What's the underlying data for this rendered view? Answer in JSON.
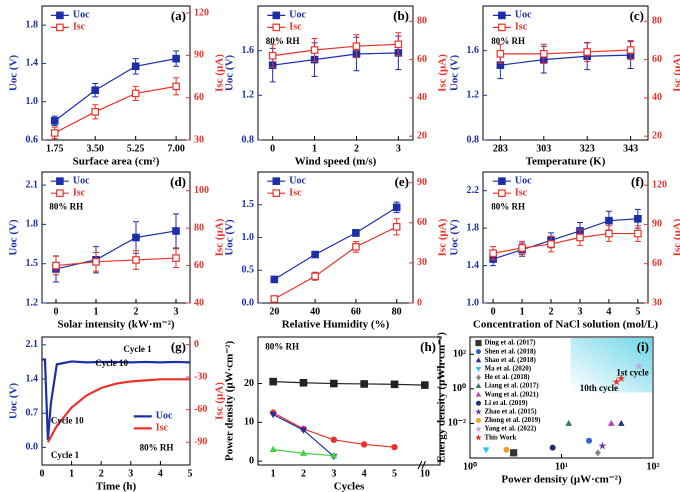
{
  "chart_data": [
    {
      "type": "line",
      "label": "(a)",
      "xlabel": "Surface area (cm²)",
      "ylabel": "Uoc (V)",
      "y2label": "Isc (μA)",
      "x": [
        1.75,
        3.5,
        5.25,
        7
      ],
      "xlim": [
        1.2,
        7.6
      ],
      "xticks": [
        1.75,
        {
          "value": 3.5,
          "label": "3.50"
        },
        5.25,
        {
          "value": 7,
          "label": "7.00"
        }
      ],
      "ylim": [
        0.6,
        2.0
      ],
      "yticks": [
        0.6,
        {
          "value": 1,
          "label": "1.0"
        },
        1.4,
        1.8
      ],
      "y2lim": [
        30,
        125
      ],
      "y2ticks": [
        30,
        60,
        90,
        120
      ],
      "series": [
        {
          "name": "Uoc",
          "color": "#1c2fa8",
          "marker": "square",
          "values": [
            0.8,
            1.12,
            1.37,
            1.45
          ],
          "errors": [
            0.05,
            0.07,
            0.08,
            0.08
          ]
        },
        {
          "name": "Isc",
          "color": "#e8332a",
          "marker": "open-square",
          "axis": "y2",
          "values": [
            35,
            50,
            63,
            68
          ],
          "errors": [
            4,
            5,
            5,
            6
          ]
        }
      ]
    },
    {
      "type": "line",
      "label": "(b)",
      "xlabel": "Wind speed (m/s)",
      "ylabel": "Uoc (V)",
      "y2label": "Isc (μA)",
      "annotations": [
        "80% RH"
      ],
      "x": [
        0,
        1,
        2,
        3
      ],
      "xlim": [
        -0.35,
        3.35
      ],
      "xticks": [
        0,
        1,
        2,
        3
      ],
      "ylim": [
        0.8,
        2.0
      ],
      "yticks": [
        0.8,
        1.2,
        1.6
      ],
      "y2lim": [
        18,
        88
      ],
      "y2ticks": [
        20,
        40,
        60,
        80
      ],
      "series": [
        {
          "name": "Uoc",
          "color": "#1c2fa8",
          "marker": "square",
          "values": [
            1.47,
            1.52,
            1.57,
            1.58
          ],
          "errors": [
            0.15,
            0.15,
            0.15,
            0.15
          ]
        },
        {
          "name": "Isc",
          "color": "#e8332a",
          "marker": "open-square",
          "axis": "y2",
          "values": [
            62,
            65,
            67,
            68
          ],
          "errors": [
            6,
            6,
            6,
            6
          ]
        }
      ]
    },
    {
      "type": "line",
      "label": "(c)",
      "xlabel": "Temperature (K)",
      "ylabel": "Uoc (V)",
      "y2label": "Isc (μA)",
      "annotations": [
        "80% RH"
      ],
      "x": [
        283,
        303,
        323,
        343
      ],
      "xlim": [
        275,
        351
      ],
      "xticks": [
        283,
        303,
        323,
        343
      ],
      "ylim": [
        0.8,
        2.0
      ],
      "yticks": [
        0.8,
        1.2,
        1.6
      ],
      "y2lim": [
        18,
        88
      ],
      "y2ticks": [
        20,
        40,
        60,
        80
      ],
      "series": [
        {
          "name": "Uoc",
          "color": "#1c2fa8",
          "marker": "square",
          "values": [
            1.47,
            1.52,
            1.55,
            1.56
          ],
          "errors": [
            0.12,
            0.12,
            0.12,
            0.12
          ]
        },
        {
          "name": "Isc",
          "color": "#e8332a",
          "marker": "open-square",
          "axis": "y2",
          "values": [
            63,
            63,
            64,
            65
          ],
          "errors": [
            5,
            5,
            5,
            5
          ]
        }
      ]
    },
    {
      "type": "line",
      "label": "(d)",
      "xlabel": "Solar intensity (kW·m⁻²)",
      "ylabel": "Uoc (V)",
      "y2label": "Isc (μA)",
      "annotations": [
        "80% RH"
      ],
      "x": [
        0,
        1,
        2,
        3
      ],
      "xlim": [
        -0.35,
        3.35
      ],
      "xticks": [
        0,
        1,
        2,
        3
      ],
      "ylim": [
        1.2,
        2.2
      ],
      "yticks": [
        1.2,
        1.5,
        1.8,
        2.1
      ],
      "y2lim": [
        40,
        110
      ],
      "y2ticks": [
        40,
        60,
        80,
        100
      ],
      "series": [
        {
          "name": "Uoc",
          "color": "#1c2fa8",
          "marker": "square",
          "values": [
            1.46,
            1.53,
            1.7,
            1.75
          ],
          "errors": [
            0.1,
            0.1,
            0.12,
            0.13
          ]
        },
        {
          "name": "Isc",
          "color": "#e8332a",
          "marker": "open-square",
          "axis": "y2",
          "values": [
            60,
            62,
            63,
            64
          ],
          "errors": [
            5,
            5,
            5,
            5
          ]
        }
      ]
    },
    {
      "type": "line",
      "label": "(e)",
      "xlabel": "Relative Humidity (%)",
      "ylabel": "Uoc (V)",
      "y2label": "Isc (μA)",
      "x": [
        20,
        40,
        60,
        80
      ],
      "xlim": [
        12,
        88
      ],
      "xticks": [
        20,
        40,
        60,
        80
      ],
      "ylim": [
        0,
        2
      ],
      "yticks": [
        {
          "value": 0,
          "label": "0.0"
        },
        0.5,
        {
          "value": 1,
          "label": "1.0"
        },
        1.5
      ],
      "y2lim": [
        0,
        98
      ],
      "y2ticks": [
        0,
        30,
        60,
        90
      ],
      "series": [
        {
          "name": "Uoc",
          "color": "#1c2fa8",
          "marker": "square",
          "values": [
            0.36,
            0.74,
            1.07,
            1.46
          ],
          "errors": [
            0.02,
            0.04,
            0.05,
            0.08
          ]
        },
        {
          "name": "Isc",
          "color": "#e8332a",
          "marker": "open-square",
          "axis": "y2",
          "values": [
            3,
            20,
            42,
            57
          ],
          "errors": [
            2,
            3,
            4,
            6
          ]
        }
      ]
    },
    {
      "type": "line",
      "label": "(f)",
      "xlabel": "Concentration of NaCl solution (mol/L)",
      "ylabel": "Uoc (V)",
      "y2label": "Isc (μA)",
      "annotations": [
        "80% RH"
      ],
      "x": [
        0,
        1,
        2,
        3,
        4,
        5
      ],
      "xlim": [
        -0.35,
        5.35
      ],
      "xticks": [
        0,
        1,
        2,
        3,
        4,
        5
      ],
      "ylim": [
        1.0,
        2.4
      ],
      "yticks": [
        {
          "value": 1,
          "label": "1.0"
        },
        1.4,
        1.8,
        2.2
      ],
      "y2lim": [
        30,
        130
      ],
      "y2ticks": [
        30,
        60,
        90,
        120
      ],
      "series": [
        {
          "name": "Uoc",
          "color": "#1c2fa8",
          "marker": "square",
          "values": [
            1.47,
            1.57,
            1.67,
            1.77,
            1.88,
            1.9
          ],
          "errors": [
            0.07,
            0.07,
            0.08,
            0.09,
            0.1,
            0.1
          ]
        },
        {
          "name": "Isc",
          "color": "#e8332a",
          "marker": "open-square",
          "axis": "y2",
          "values": [
            68,
            72,
            75,
            80,
            83,
            83
          ],
          "errors": [
            5,
            5,
            6,
            6,
            6,
            6
          ]
        }
      ]
    },
    {
      "type": "line",
      "label": "(g)",
      "xlabel": "Time (h)",
      "ylabel": "Uoc (V)",
      "y2label": "Isc (μA)",
      "annotations": [
        "Cycle 1",
        "Cycle 10",
        "Cycle 10",
        "Cycle 1",
        "80% RH"
      ],
      "x": [
        0,
        0.1,
        0.2,
        0.3,
        0.5,
        1,
        1.5,
        2,
        2.5,
        3,
        3.5,
        4,
        4.5,
        5
      ],
      "xlim": [
        0,
        5
      ],
      "xticks": [
        0,
        1,
        2,
        3,
        4,
        5
      ],
      "ylim": [
        -0.36,
        2.26
      ],
      "yticks": [
        {
          "value": 0,
          "label": "0.0"
        },
        0.7,
        1.4,
        2.1
      ],
      "y2lim": [
        -111,
        7
      ],
      "y2ticks": [
        0,
        -30,
        -60,
        -90
      ],
      "series": [
        {
          "name": "Uoc",
          "color": "#1c2fa8",
          "marker": "none",
          "values": [
            1.8,
            1.8,
            0.15,
            0.9,
            1.7,
            1.76,
            1.74,
            1.75,
            1.75,
            1.74,
            1.75,
            1.74,
            1.75,
            1.74
          ]
        },
        {
          "name": "Isc",
          "color": "#e8332a",
          "marker": "none",
          "axis": "y2",
          "values": [
            null,
            null,
            -90,
            -85,
            -75,
            -58,
            -47,
            -40,
            -36,
            -34,
            -33,
            -32,
            -32,
            -32
          ]
        }
      ]
    },
    {
      "type": "line",
      "label": "(h)",
      "xlabel": "Cycles",
      "ylabel": "Power density (μW·cm⁻²)",
      "annotations": [
        "80% RH"
      ],
      "categories": [
        "1",
        "2",
        "3",
        "4",
        "5",
        "10"
      ],
      "ylim": [
        -1,
        32
      ],
      "yticks": [
        0,
        10,
        20
      ],
      "series": [
        {
          "color": "#222222",
          "marker": "square",
          "values": [
            20.5,
            20.2,
            20,
            19.9,
            19.8,
            19.6
          ]
        },
        {
          "color": "#e8332a",
          "marker": "circle",
          "values": [
            12.5,
            8.3,
            5.5,
            4.3,
            3.6,
            null
          ]
        },
        {
          "color": "#1c2fa8",
          "marker": "down",
          "values": [
            12,
            8,
            1.2,
            null,
            null,
            null
          ]
        },
        {
          "color": "#3fd13f",
          "marker": "triangle",
          "values": [
            3,
            2,
            1.4,
            null,
            null,
            null
          ]
        }
      ]
    },
    {
      "type": "scatter",
      "label": "(i)",
      "xlabel": "Power density (μW·cm⁻²)",
      "ylabel": "Energy density (μWh·cm⁻²)",
      "annotations": [
        "1st cycle",
        "10th cycle"
      ],
      "xlog": true,
      "ylog": true,
      "xlim": [
        1,
        100
      ],
      "ylim": [
        0.0001,
        1000
      ],
      "xticks": [
        {
          "value": 1,
          "label": "10⁰"
        },
        {
          "value": 10,
          "label": "10¹"
        },
        {
          "value": 100,
          "label": "10²"
        }
      ],
      "yticks": [
        {
          "value": 0.01,
          "label": "10⁻²"
        },
        {
          "value": 1,
          "label": "10⁰"
        },
        {
          "value": 100,
          "label": "10²"
        }
      ],
      "series": [
        {
          "name": "Ding et al. (2017)",
          "color": "#333333",
          "marker": "square",
          "x": [
            3
          ],
          "values": [
            0.0002
          ]
        },
        {
          "name": "Shen et al. (2018)",
          "color": "#2f5fd0",
          "marker": "circle",
          "x": [
            20
          ],
          "values": [
            0.001
          ]
        },
        {
          "name": "Shao et al. (2018)",
          "color": "#2f2f8f",
          "marker": "triangle",
          "x": [
            45
          ],
          "values": [
            0.01
          ]
        },
        {
          "name": "Ma et al. (2020)",
          "color": "#29c5e6",
          "marker": "down",
          "x": [
            1.5
          ],
          "values": [
            0.0003
          ]
        },
        {
          "name": "He et al. (2018)",
          "color": "#7f8f7f",
          "marker": "diamond",
          "x": [
            25
          ],
          "values": [
            0.0002
          ]
        },
        {
          "name": "Liang et al. (2017)",
          "color": "#2a7b6f",
          "marker": "triangle",
          "x": [
            12
          ],
          "values": [
            0.01
          ]
        },
        {
          "name": "Wang et al. (2021)",
          "color": "#c03fb0",
          "marker": "triangle",
          "x": [
            35
          ],
          "values": [
            0.01
          ]
        },
        {
          "name": "Li et al. (2019)",
          "color": "#1f2f6f",
          "marker": "circle",
          "x": [
            8
          ],
          "values": [
            0.0004
          ]
        },
        {
          "name": "Zhao et al. (2015)",
          "color": "#6a3d9a",
          "marker": "star",
          "x": [
            28
          ],
          "values": [
            0.0005
          ]
        },
        {
          "name": "Zhong et al. (2019)",
          "color": "#f0a030",
          "marker": "circle",
          "x": [
            2.5
          ],
          "values": [
            0.0003
          ]
        },
        {
          "name": "Yang et al. (2022)",
          "color": "#c8a0e8",
          "marker": "star",
          "x": [
            70
          ],
          "values": [
            20
          ]
        },
        {
          "name": "This Work",
          "color": "#e8332a",
          "marker": "star",
          "x": [
            45,
            40
          ],
          "values": [
            4,
            2.5
          ]
        }
      ]
    }
  ]
}
